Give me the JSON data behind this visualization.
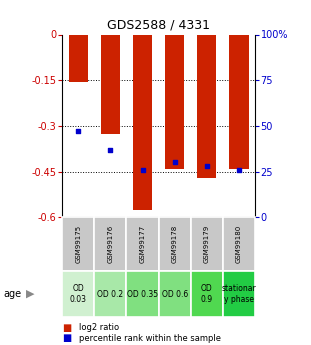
{
  "title": "GDS2588 / 4331",
  "samples": [
    "GSM99175",
    "GSM99176",
    "GSM99177",
    "GSM99178",
    "GSM99179",
    "GSM99180"
  ],
  "log2_ratio": [
    -0.155,
    -0.325,
    -0.575,
    -0.44,
    -0.47,
    -0.44
  ],
  "percentile_rank": [
    47,
    37,
    26,
    30,
    28,
    26
  ],
  "bar_color": "#cc2200",
  "dot_color": "#0000cc",
  "ylim_left": [
    -0.6,
    0.0
  ],
  "ylim_right": [
    0,
    100
  ],
  "yticks_left": [
    0.0,
    -0.15,
    -0.3,
    -0.45,
    -0.6
  ],
  "yticks_right": [
    0,
    25,
    50,
    75,
    100
  ],
  "ytick_right_labels": [
    "0",
    "25",
    "50",
    "75",
    "100%"
  ],
  "dotted_lines": [
    -0.15,
    -0.3,
    -0.45
  ],
  "sample_labels_bg": "#c8c8c8",
  "age_labels": [
    "OD\n0.03",
    "OD 0.2",
    "OD 0.35",
    "OD 0.6",
    "OD\n0.9",
    "stationar\ny phase"
  ],
  "age_bg_colors": [
    "#d0f0d0",
    "#a8e8a8",
    "#80e080",
    "#80e080",
    "#50d850",
    "#22cc44"
  ],
  "legend_red": "log2 ratio",
  "legend_blue": "percentile rank within the sample",
  "xlabel": "age",
  "left_label_color": "#cc0000",
  "right_label_color": "#0000cc",
  "title_fontsize": 9,
  "axis_fontsize": 7,
  "sample_fontsize": 5,
  "age_fontsize": 5.5
}
